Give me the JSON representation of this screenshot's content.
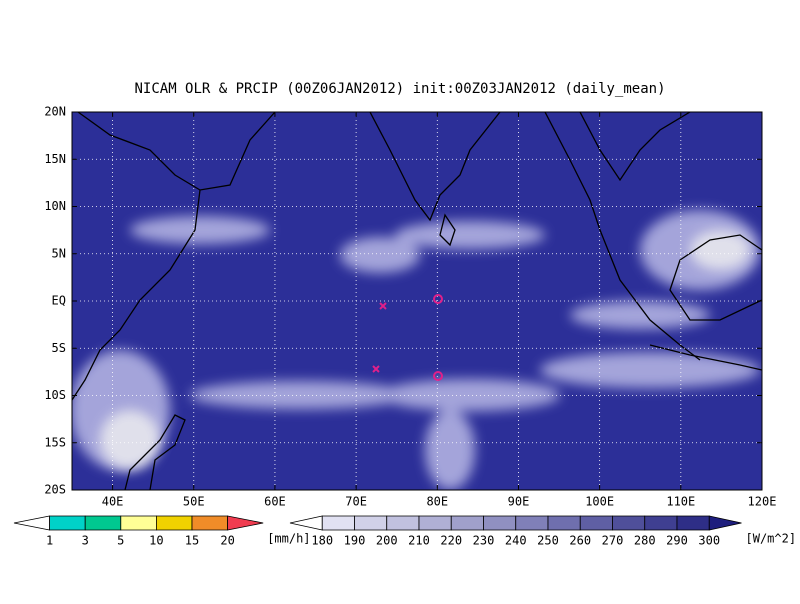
{
  "title": "NICAM OLR & PRCIP (00Z06JAN2012) init:00Z03JAN2012 (daily_mean)",
  "map": {
    "lat_labels": [
      "20N",
      "15N",
      "10N",
      "5N",
      "EQ",
      "5S",
      "10S",
      "15S",
      "20S"
    ],
    "lon_labels": [
      "40E",
      "50E",
      "60E",
      "70E",
      "80E",
      "90E",
      "100E",
      "110E",
      "120E"
    ]
  },
  "legends": [
    {
      "labels": [
        "1",
        "3",
        "5",
        "10",
        "15",
        "20"
      ],
      "unit": "[mm/h]"
    },
    {
      "labels": [
        "180",
        "190",
        "200",
        "210",
        "220",
        "230",
        "240",
        "250",
        "260",
        "270",
        "280",
        "290",
        "300"
      ],
      "unit": "[W/m^2]"
    }
  ]
}
